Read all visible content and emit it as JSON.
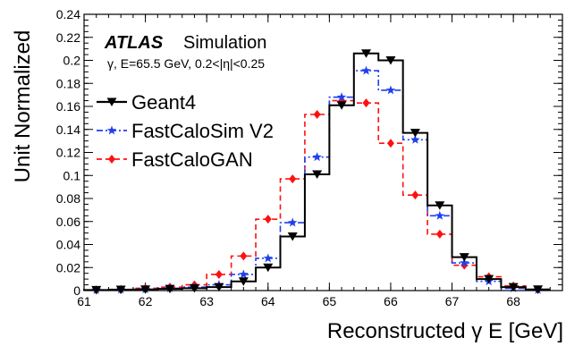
{
  "chart_data": {
    "type": "line",
    "xlabel": "Reconstructed γ E [GeV]",
    "ylabel": "Unit Normalized",
    "xlim": [
      61.0,
      68.8
    ],
    "ylim": [
      0,
      0.24
    ],
    "x_ticks": [
      61,
      62,
      63,
      64,
      65,
      66,
      67,
      68
    ],
    "y_ticks": [
      0,
      0.02,
      0.04,
      0.06,
      0.08,
      0.1,
      0.12,
      0.14,
      0.16,
      0.18,
      0.2,
      0.22,
      0.24
    ],
    "bin_edges": [
      61.0,
      61.4,
      61.8,
      62.2,
      62.6,
      63.0,
      63.4,
      63.8,
      64.2,
      64.6,
      65.0,
      65.4,
      65.8,
      66.2,
      66.6,
      67.0,
      67.4,
      67.8,
      68.2,
      68.6
    ],
    "bin_centers": [
      61.2,
      61.6,
      62.0,
      62.4,
      62.8,
      63.2,
      63.6,
      64.0,
      64.4,
      64.8,
      65.2,
      65.6,
      66.0,
      66.4,
      66.8,
      67.2,
      67.6,
      68.0,
      68.4
    ],
    "series": [
      {
        "name": "Geant4",
        "color": "#000000",
        "marker": "triangle-down",
        "dash": "solid",
        "values": [
          0.0005,
          0.0008,
          0.001,
          0.0015,
          0.002,
          0.003,
          0.008,
          0.02,
          0.047,
          0.101,
          0.161,
          0.206,
          0.2,
          0.137,
          0.074,
          0.029,
          0.01,
          0.003,
          0.001
        ]
      },
      {
        "name": "FastCaloSim V2",
        "color": "#1f3ff0",
        "marker": "star",
        "dash": "dashdot",
        "values": [
          0.0005,
          0.0008,
          0.001,
          0.002,
          0.003,
          0.005,
          0.014,
          0.028,
          0.059,
          0.116,
          0.168,
          0.191,
          0.174,
          0.131,
          0.065,
          0.024,
          0.008,
          0.002,
          0.0005
        ]
      },
      {
        "name": "FastCaloGAN",
        "color": "#ff1010",
        "marker": "diamond",
        "dash": "dashed",
        "values": [
          0.0005,
          0.001,
          0.002,
          0.003,
          0.005,
          0.014,
          0.03,
          0.062,
          0.097,
          0.153,
          0.165,
          0.163,
          0.128,
          0.083,
          0.049,
          0.022,
          0.012,
          0.004,
          0.001
        ]
      }
    ],
    "annotations": {
      "atlas": "ATLAS",
      "simulation": "Simulation",
      "info": "γ, E=65.5 GeV, 0.2<|η|<0.25"
    },
    "legend_position": "top-left",
    "grid": false
  }
}
